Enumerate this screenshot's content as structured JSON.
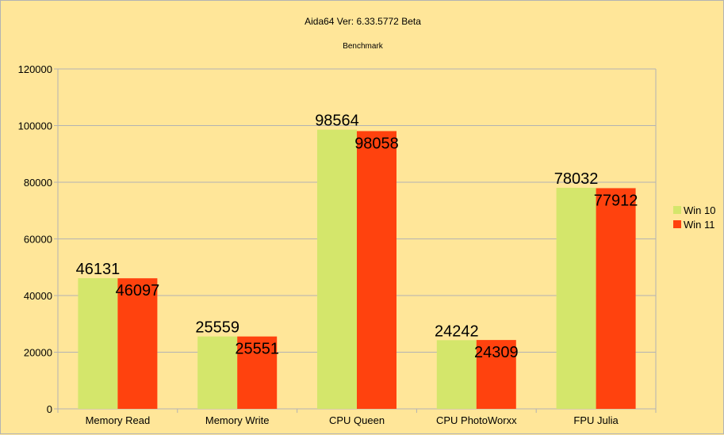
{
  "chart_data": {
    "type": "bar",
    "title": "Aida64 Ver: 6.33.5772 Beta",
    "subtitle": "Benchmark",
    "xlabel": "",
    "ylabel": "",
    "categories": [
      "Memory Read",
      "Memory Write",
      "CPU Queen",
      "CPU PhotoWorxx",
      "FPU Julia"
    ],
    "series": [
      {
        "name": "Win 10",
        "color": "#d4e66b",
        "values": [
          46131,
          25559,
          98564,
          24242,
          78032
        ]
      },
      {
        "name": "Win 11",
        "color": "#ff420e",
        "values": [
          46097,
          25551,
          98058,
          24309,
          77912
        ]
      }
    ],
    "ylim": [
      0,
      120000
    ],
    "yticks": [
      "0",
      "20000",
      "40000",
      "60000",
      "80000",
      "100000",
      "120000"
    ],
    "grid": true,
    "legend_position": "right",
    "data_labels": true
  }
}
